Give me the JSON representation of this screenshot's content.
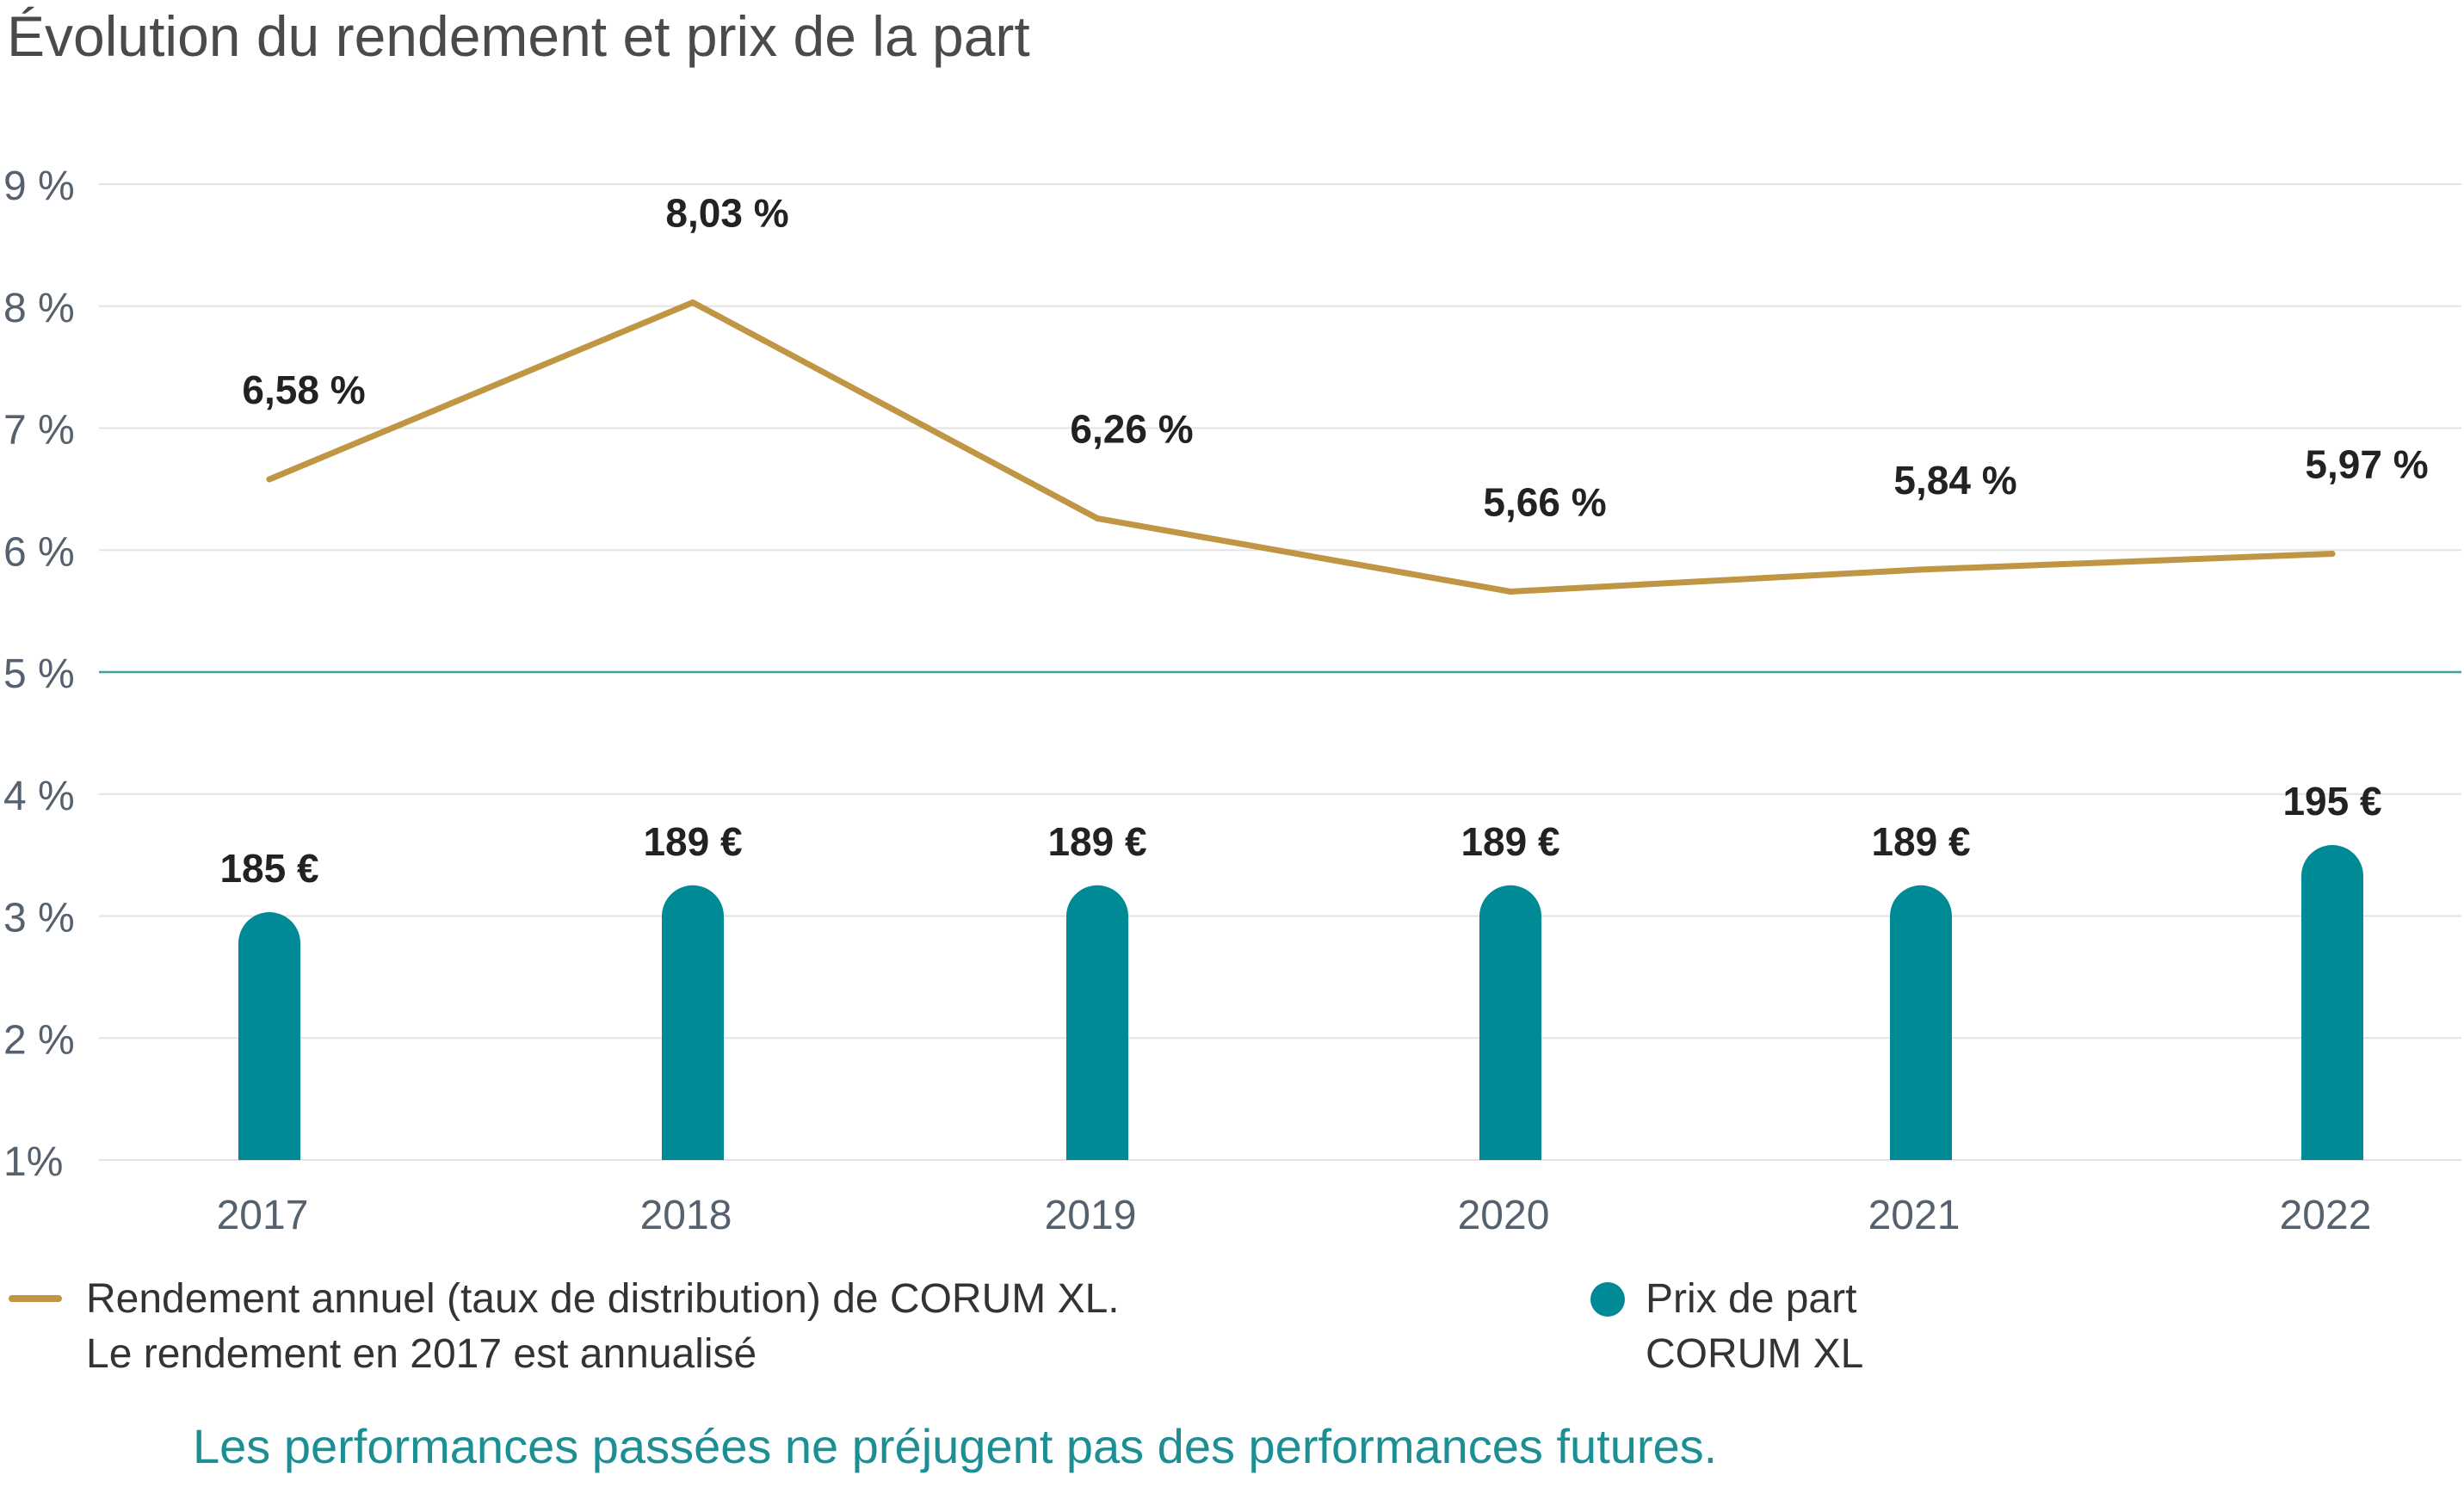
{
  "chart_data": {
    "type": "bar+line",
    "title": "Évolution du rendement et prix de la part",
    "categories": [
      "2017",
      "2018",
      "2019",
      "2020",
      "2021",
      "2022"
    ],
    "y_ticks": [
      "1%",
      "2 %",
      "3 %",
      "4 %",
      "5 %",
      "6 %",
      "7 %",
      "8 %",
      "9 %"
    ],
    "ylim": [
      1,
      9
    ],
    "grid": true,
    "series": [
      {
        "name": "Rendement annuel (taux de distribution) de CORUM XL.",
        "type": "line",
        "values": [
          6.58,
          8.03,
          6.26,
          5.66,
          5.84,
          5.97
        ],
        "labels": [
          "6,58 %",
          "8,03 %",
          "6,26 %",
          "5,66 %",
          "5,84 %",
          "5,97 %"
        ],
        "color": "#c09543"
      },
      {
        "name": "Prix de part",
        "type": "bar",
        "values": [
          185,
          189,
          189,
          189,
          189,
          195
        ],
        "labels": [
          "185 €",
          "189 €",
          "189 €",
          "189 €",
          "189 €",
          "195 €"
        ],
        "color": "#008a96"
      }
    ]
  },
  "legend": {
    "line_label_1": "Rendement annuel (taux de distribution) de CORUM XL.",
    "line_label_2": "Le rendement en 2017 est annualisé",
    "bar_label_1": "Prix de part",
    "bar_label_2": "CORUM XL"
  },
  "disclaimer": "Les performances passées ne préjugent pas des performances futures.",
  "colors": {
    "line": "#c09543",
    "bar": "#008a96",
    "grid": "#e3e3e3",
    "highlight_grid": "#3aa596"
  }
}
